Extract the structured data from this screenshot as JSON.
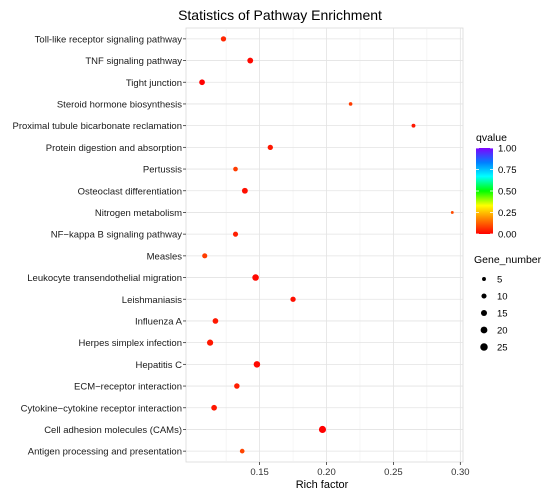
{
  "chart_data": {
    "type": "scatter",
    "title": "Statistics of Pathway Enrichment",
    "xlabel": "Rich factor",
    "ylabel": "",
    "xlim": [
      0.095,
      0.302
    ],
    "xticks": [
      "0.15",
      "0.20",
      "0.25",
      "0.30"
    ],
    "xtick_values": [
      0.15,
      0.2,
      0.25,
      0.3
    ],
    "grid": true,
    "categories": [
      "Toll-like receptor signaling pathway",
      "TNF signaling pathway",
      "Tight junction",
      "Steroid hormone biosynthesis",
      "Proximal tubule bicarbonate reclamation",
      "Protein digestion and absorption",
      "Pertussis",
      "Osteoclast differentiation",
      "Nitrogen metabolism",
      "NF−kappa B signaling pathway",
      "Measles",
      "Leukocyte transendothelial migration",
      "Leishmaniasis",
      "Influenza A",
      "Herpes simplex infection",
      "Hepatitis C",
      "ECM−receptor interaction",
      "Cytokine−cytokine receptor interaction",
      "Cell adhesion molecules (CAMs)",
      "Antigen processing and presentation"
    ],
    "rich_factor": [
      0.123,
      0.143,
      0.107,
      0.218,
      0.265,
      0.158,
      0.132,
      0.139,
      0.294,
      0.132,
      0.109,
      0.147,
      0.175,
      0.117,
      0.113,
      0.148,
      0.133,
      0.116,
      0.197,
      0.137
    ],
    "gene_number": [
      11,
      14,
      13,
      4,
      5,
      11,
      8,
      14,
      2,
      10,
      10,
      18,
      11,
      13,
      16,
      18,
      12,
      13,
      22,
      8
    ],
    "qvalue": [
      0.05,
      0.01,
      0.0,
      0.08,
      0.03,
      0.03,
      0.08,
      0.02,
      0.1,
      0.04,
      0.08,
      0.01,
      0.02,
      0.03,
      0.03,
      0.01,
      0.04,
      0.03,
      0.0,
      0.09
    ],
    "color_legend": {
      "title": "qvalue",
      "ticks": [
        "1.00",
        "0.75",
        "0.50",
        "0.25",
        "0.00"
      ],
      "tick_values": [
        1.0,
        0.75,
        0.5,
        0.25,
        0.0
      ],
      "colors": [
        "#ff0000",
        "#ff8000",
        "#ffff00",
        "#00ff00",
        "#00ffff",
        "#0080ff",
        "#8000ff"
      ]
    },
    "size_legend": {
      "title": "Gene_number",
      "labels": [
        "5",
        "10",
        "15",
        "20",
        "25"
      ],
      "values": [
        5,
        10,
        15,
        20,
        25
      ]
    },
    "legend_position": "right"
  }
}
